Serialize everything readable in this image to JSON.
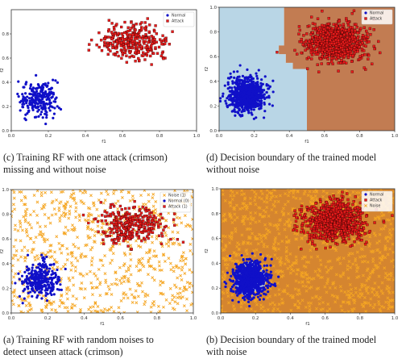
{
  "captions": {
    "c": "(c) Training RF with one attack (crimson)\nmissing and without noise",
    "d": "(d) Decision boundary of the trained model\nwithout noise",
    "a": "(a) Training RF with random noises to\ndetect unseen attack (crimson)",
    "b": "(b) Decision boundary of the trained model\nwith noise"
  },
  "colors": {
    "normal": "#1010c8",
    "attack": "#e81b1b",
    "noise": "#f5a623",
    "region_normal": "#b9d6e6",
    "region_attack": "#c27c52",
    "region_noise": "#d5852f"
  },
  "chart_data": [
    {
      "id": "c",
      "type": "scatter",
      "xlabel": "f1",
      "ylabel": "f2",
      "xlim": [
        0,
        1
      ],
      "ylim": [
        0,
        1
      ],
      "xticks": [
        "0.0",
        "0.2",
        "0.4",
        "0.6",
        "0.8",
        "1.0"
      ],
      "yticks": [
        "0.0",
        "0.2",
        "0.4",
        "0.6",
        "0.8"
      ],
      "legend": {
        "position": "top-right",
        "entries": [
          {
            "label": "Normal",
            "marker": "circle",
            "color": "#1010c8"
          },
          {
            "label": "Attack",
            "marker": "square",
            "color": "#e81b1b"
          }
        ]
      },
      "series": [
        {
          "name": "Normal",
          "marker": "circle",
          "color": "#1010c8",
          "center": [
            0.15,
            0.27
          ],
          "spread": [
            0.05,
            0.07
          ],
          "count": 250
        },
        {
          "name": "Attack",
          "marker": "square",
          "color": "#e81b1b",
          "center": [
            0.65,
            0.73
          ],
          "spread": [
            0.09,
            0.07
          ],
          "count": 300
        }
      ]
    },
    {
      "id": "d",
      "type": "scatter",
      "xlabel": "f1",
      "ylabel": "f2",
      "xlim": [
        0,
        1
      ],
      "ylim": [
        0,
        1
      ],
      "xticks": [
        "0.0",
        "0.2",
        "0.4",
        "0.6",
        "0.8",
        "1.0"
      ],
      "yticks": [
        "0.0",
        "0.2",
        "0.4",
        "0.6",
        "0.8",
        "1.0"
      ],
      "legend": {
        "position": "top-right",
        "entries": [
          {
            "label": "Normal",
            "marker": "circle",
            "color": "#1010c8"
          },
          {
            "label": "Attack",
            "marker": "square",
            "color": "#e81b1b"
          }
        ]
      },
      "regions": [
        {
          "class": "Normal",
          "color": "#b9d6e6",
          "polygon": [
            [
              0,
              0
            ],
            [
              0.5,
              0
            ],
            [
              0.5,
              0.5
            ],
            [
              0.42,
              0.5
            ],
            [
              0.42,
              0.55
            ],
            [
              0.38,
              0.55
            ],
            [
              0.38,
              0.62
            ],
            [
              0.34,
              0.62
            ],
            [
              0.34,
              0.69
            ],
            [
              0.37,
              0.69
            ],
            [
              0.37,
              0.84
            ],
            [
              0.37,
              1
            ],
            [
              0,
              1
            ]
          ]
        },
        {
          "class": "Attack",
          "color": "#c27c52",
          "polygon": [
            [
              0.5,
              0
            ],
            [
              1,
              0
            ],
            [
              1,
              1
            ],
            [
              0.37,
              1
            ],
            [
              0.37,
              0.84
            ],
            [
              0.37,
              0.69
            ],
            [
              0.34,
              0.69
            ],
            [
              0.34,
              0.62
            ],
            [
              0.38,
              0.62
            ],
            [
              0.38,
              0.55
            ],
            [
              0.42,
              0.55
            ],
            [
              0.42,
              0.5
            ],
            [
              0.5,
              0.5
            ]
          ]
        }
      ],
      "series": [
        {
          "name": "Normal",
          "marker": "circle",
          "color": "#1010c8",
          "center": [
            0.16,
            0.29
          ],
          "spread": [
            0.05,
            0.07
          ],
          "count": 800
        },
        {
          "name": "Attack",
          "marker": "square",
          "color": "#e81b1b",
          "center": [
            0.67,
            0.72
          ],
          "spread": [
            0.09,
            0.08
          ],
          "count": 800
        }
      ]
    },
    {
      "id": "a",
      "type": "scatter",
      "xlabel": "f1",
      "ylabel": "f2",
      "xlim": [
        0,
        1
      ],
      "ylim": [
        0,
        1
      ],
      "xticks": [
        "0.0",
        "0.2",
        "0.4",
        "0.6",
        "0.8",
        "1.0"
      ],
      "yticks": [
        "0.0",
        "0.2",
        "0.4",
        "0.6",
        "0.8",
        "1.0"
      ],
      "legend": {
        "position": "top-right",
        "entries": [
          {
            "label": "Noise (1)",
            "marker": "x",
            "color": "#f5a623"
          },
          {
            "label": "Normal (0)",
            "marker": "circle",
            "color": "#1010c8"
          },
          {
            "label": "Attack (1)",
            "marker": "square",
            "color": "#e81b1b"
          }
        ]
      },
      "series": [
        {
          "name": "Noise (1)",
          "marker": "x",
          "color": "#f5a623",
          "distribution": "uniform",
          "count": 750
        },
        {
          "name": "Normal (0)",
          "marker": "circle",
          "color": "#1010c8",
          "center": [
            0.16,
            0.27
          ],
          "spread": [
            0.05,
            0.07
          ],
          "count": 300
        },
        {
          "name": "Attack (1)",
          "marker": "square",
          "color": "#e81b1b",
          "center": [
            0.66,
            0.72
          ],
          "spread": [
            0.09,
            0.07
          ],
          "count": 300
        }
      ]
    },
    {
      "id": "b",
      "type": "scatter",
      "xlabel": "f1",
      "ylabel": "f2",
      "xlim": [
        0,
        1
      ],
      "ylim": [
        0,
        1
      ],
      "xticks": [
        "0.0",
        "0.2",
        "0.4",
        "0.6",
        "0.8",
        "1.0"
      ],
      "yticks": [
        "0.0",
        "0.2",
        "0.4",
        "0.6",
        "0.8",
        "1.0"
      ],
      "legend": {
        "position": "top-right",
        "entries": [
          {
            "label": "Normal",
            "marker": "circle",
            "color": "#1010c8"
          },
          {
            "label": "Attack",
            "marker": "square",
            "color": "#e81b1b"
          },
          {
            "label": "Noise",
            "marker": "x",
            "color": "#f5a623"
          }
        ]
      },
      "regions": [
        {
          "class": "Noise",
          "color": "#d5852f",
          "polygon": [
            [
              0,
              0
            ],
            [
              1,
              0
            ],
            [
              1,
              1
            ],
            [
              0,
              1
            ]
          ]
        },
        {
          "class": "Normal",
          "color": "#b9d6e6",
          "ellipse": {
            "center": [
              0.17,
              0.27
            ],
            "radius": [
              0.09,
              0.14
            ]
          }
        }
      ],
      "series": [
        {
          "name": "Noise",
          "marker": "x",
          "color": "#f5a623",
          "distribution": "uniform",
          "count": 1000
        },
        {
          "name": "Normal",
          "marker": "circle",
          "color": "#1010c8",
          "center": [
            0.17,
            0.27
          ],
          "spread": [
            0.05,
            0.07
          ],
          "count": 800
        },
        {
          "name": "Attack",
          "marker": "square",
          "color": "#e81b1b",
          "center": [
            0.66,
            0.73
          ],
          "spread": [
            0.09,
            0.08
          ],
          "count": 800
        }
      ]
    }
  ]
}
